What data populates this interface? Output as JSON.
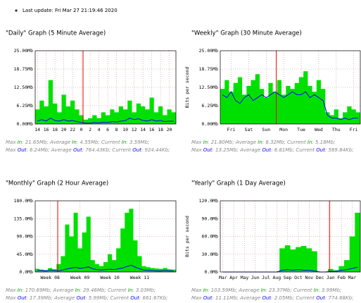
{
  "last_update": "Last update: Fri Mar 27 21:19:46 2020",
  "chart_data": [
    {
      "type": "area",
      "title": "\"Daily\" Graph (5 Minute Average)",
      "categories": [
        "14",
        null,
        "16",
        null,
        "18",
        null,
        "20",
        null,
        "22",
        null,
        "0",
        null,
        "2",
        null,
        "4",
        null,
        "6",
        null,
        "8",
        null,
        "10",
        null,
        "12",
        null,
        "14",
        null,
        "16",
        null,
        "18",
        null,
        "20",
        null
      ],
      "series": [
        {
          "name": "In",
          "color": "#00e000",
          "values": [
            5,
            8,
            6,
            15,
            7,
            4,
            10,
            6,
            8,
            5,
            3,
            1.5,
            2,
            3,
            2,
            4,
            3,
            5,
            4,
            6,
            5,
            8,
            4,
            7,
            6,
            5,
            9,
            4,
            6,
            3,
            5,
            4
          ],
          "stats": [
            "Max ",
            ": 21.65Mb; Average ",
            ": 4.55Mb; Current ",
            ": 3.59Mb;"
          ]
        },
        {
          "name": "Out",
          "color": "#0000ff",
          "values": [
            1,
            1.5,
            1,
            2,
            1.2,
            1,
            1.5,
            1,
            1.2,
            0.8,
            0.5,
            0.3,
            0.3,
            0.5,
            0.4,
            0.6,
            0.5,
            0.8,
            0.7,
            1,
            1.2,
            2,
            1.5,
            1.8,
            1.2,
            1,
            1.5,
            1,
            1.2,
            0.8,
            1,
            0.9
          ],
          "stats": [
            "Max ",
            ": 6.24Mb; Average ",
            ": 764.43Kb; Current ",
            ": 924.44Kb;"
          ]
        }
      ],
      "ylim": [
        0,
        25
      ],
      "yticks": [
        {
          "value": 0,
          "label": "0.00Mb"
        },
        {
          "value": 6.25,
          "label": "6.25Mb"
        },
        {
          "value": 12.5,
          "label": "12.50Mb"
        },
        {
          "value": 18.75,
          "label": "18.75Mb"
        },
        {
          "value": 25,
          "label": "25.00Mb"
        }
      ],
      "grid": true
    },
    {
      "type": "area",
      "title": "\"Weekly\" Graph (30 Minute Average)",
      "y_label": "Bits per second",
      "categories": [
        null,
        null,
        "Fri",
        null,
        null,
        null,
        "Sat",
        null,
        null,
        null,
        "Sun",
        null,
        null,
        null,
        "Mon",
        null,
        null,
        null,
        "Tue",
        null,
        null,
        null,
        "Wed",
        null,
        null,
        null,
        "Thu",
        null,
        null,
        null,
        "Fri",
        null
      ],
      "series": [
        {
          "name": "In",
          "color": "#00e000",
          "values": [
            12,
            15,
            11,
            14,
            16,
            10,
            13,
            15,
            17,
            12,
            9,
            14,
            11,
            15,
            10,
            13,
            12,
            14,
            16,
            18,
            13,
            11,
            15,
            12,
            4,
            3,
            5,
            2,
            4,
            6,
            5,
            4
          ],
          "stats": [
            "Max ",
            ": 21.80Mb; Average ",
            ": 8.32Mb; Current ",
            ": 5.18Mb;"
          ]
        },
        {
          "name": "Out",
          "color": "#0000ff",
          "values": [
            10,
            9,
            11,
            8,
            7,
            9,
            10,
            8,
            9,
            10,
            9,
            10,
            11,
            10,
            9,
            10,
            11,
            10,
            10,
            11,
            9,
            10,
            9,
            8,
            3,
            2,
            2,
            1.5,
            2,
            1.5,
            2,
            2
          ],
          "stats": [
            "Max ",
            ": 13.25Mb; Average ",
            ": 6.81Mb; Current ",
            ": 569.84Kb;"
          ]
        }
      ],
      "ylim": [
        0,
        25
      ],
      "yticks": [
        {
          "value": 0,
          "label": "0.00Mb"
        },
        {
          "value": 6.25,
          "label": "6.25Mb"
        },
        {
          "value": 12.5,
          "label": "12.50Mb"
        },
        {
          "value": 18.75,
          "label": "18.75Mb"
        },
        {
          "value": 25,
          "label": "25.00Mb"
        }
      ],
      "grid": true
    },
    {
      "type": "area",
      "title": "\"Monthly\" Graph (2 Hour Average)",
      "categories": [
        null,
        null,
        null,
        "Week 08",
        null,
        null,
        null,
        null,
        null,
        null,
        "Week 09",
        null,
        null,
        null,
        null,
        null,
        null,
        "Week 10",
        null,
        null,
        null,
        null,
        null,
        null,
        "Week 11",
        null,
        null,
        null,
        null,
        null,
        null,
        null,
        null
      ],
      "series": [
        {
          "name": "In",
          "color": "#00e000",
          "values": [
            8,
            6,
            5,
            10,
            7,
            20,
            40,
            120,
            90,
            150,
            60,
            100,
            140,
            30,
            20,
            15,
            25,
            45,
            30,
            60,
            110,
            150,
            160,
            80,
            40,
            15,
            12,
            10,
            9,
            8,
            10,
            7,
            6
          ],
          "stats": [
            "Max ",
            ": 170.69Mb; Average ",
            ": 29.46Mb; Current ",
            ": 3.03Mb;"
          ]
        },
        {
          "name": "Out",
          "color": "#0000ff",
          "values": [
            4,
            4,
            3,
            5,
            4,
            3,
            5,
            8,
            10,
            12,
            9,
            11,
            13,
            8,
            6,
            5,
            6,
            7,
            6,
            8,
            10,
            14,
            17,
            12,
            8,
            5,
            4,
            4,
            3,
            3,
            4,
            3,
            3
          ],
          "stats": [
            "Max ",
            ": 17.39Mb; Average ",
            ": 5.99Mb; Current ",
            ": 661.67Kb;"
          ]
        }
      ],
      "ylim": [
        0,
        180
      ],
      "yticks": [
        {
          "value": 0,
          "label": "0.0Mb"
        },
        {
          "value": 45,
          "label": "45.0Mb"
        },
        {
          "value": 90,
          "label": "90.0Mb"
        },
        {
          "value": 135,
          "label": "135.0Mb"
        },
        {
          "value": 180,
          "label": "180.0Mb"
        }
      ],
      "grid": true
    },
    {
      "type": "area",
      "title": "\"Yearly\" Graph (1 Day Average)",
      "y_label": "Bits per second",
      "categories": [
        "Mar",
        null,
        "Apr",
        null,
        "May",
        null,
        "Jun",
        null,
        "Jul",
        null,
        "Aug",
        null,
        "Sep",
        null,
        "Oct",
        null,
        "Nov",
        null,
        "Dec",
        null,
        "Jan",
        null,
        "Feb",
        null,
        "Mar",
        null
      ],
      "series": [
        {
          "name": "In",
          "color": "#00e000",
          "values": [
            0,
            0,
            0,
            0,
            0,
            0,
            0,
            0,
            0,
            0,
            0,
            40,
            45,
            38,
            42,
            44,
            40,
            35,
            0,
            0,
            5,
            3,
            10,
            20,
            60,
            100
          ],
          "stats": [
            "Max ",
            ": 103.59Mb; Average ",
            ": 23.37Mb; Current ",
            ": 3.99Mb;"
          ]
        },
        {
          "name": "Out",
          "color": "#0000ff",
          "values": [
            0,
            0,
            0,
            0,
            0,
            0,
            0,
            0,
            0,
            0,
            0,
            3,
            4,
            3,
            4,
            3,
            3,
            2,
            0,
            0,
            1,
            1,
            3,
            4,
            6,
            8
          ],
          "stats": [
            "Max ",
            ": 11.11Mb; Average ",
            ": 2.05Mb; Current ",
            ": 774.68Kb;"
          ]
        }
      ],
      "ylim": [
        0,
        120
      ],
      "yticks": [
        {
          "value": 0,
          "label": "0.0Mb"
        },
        {
          "value": 30,
          "label": "30.0Mb"
        },
        {
          "value": 60,
          "label": "60.0Mb"
        },
        {
          "value": 90,
          "label": "90.0Mb"
        },
        {
          "value": 120,
          "label": "120.0Mb"
        }
      ],
      "grid": true
    }
  ]
}
